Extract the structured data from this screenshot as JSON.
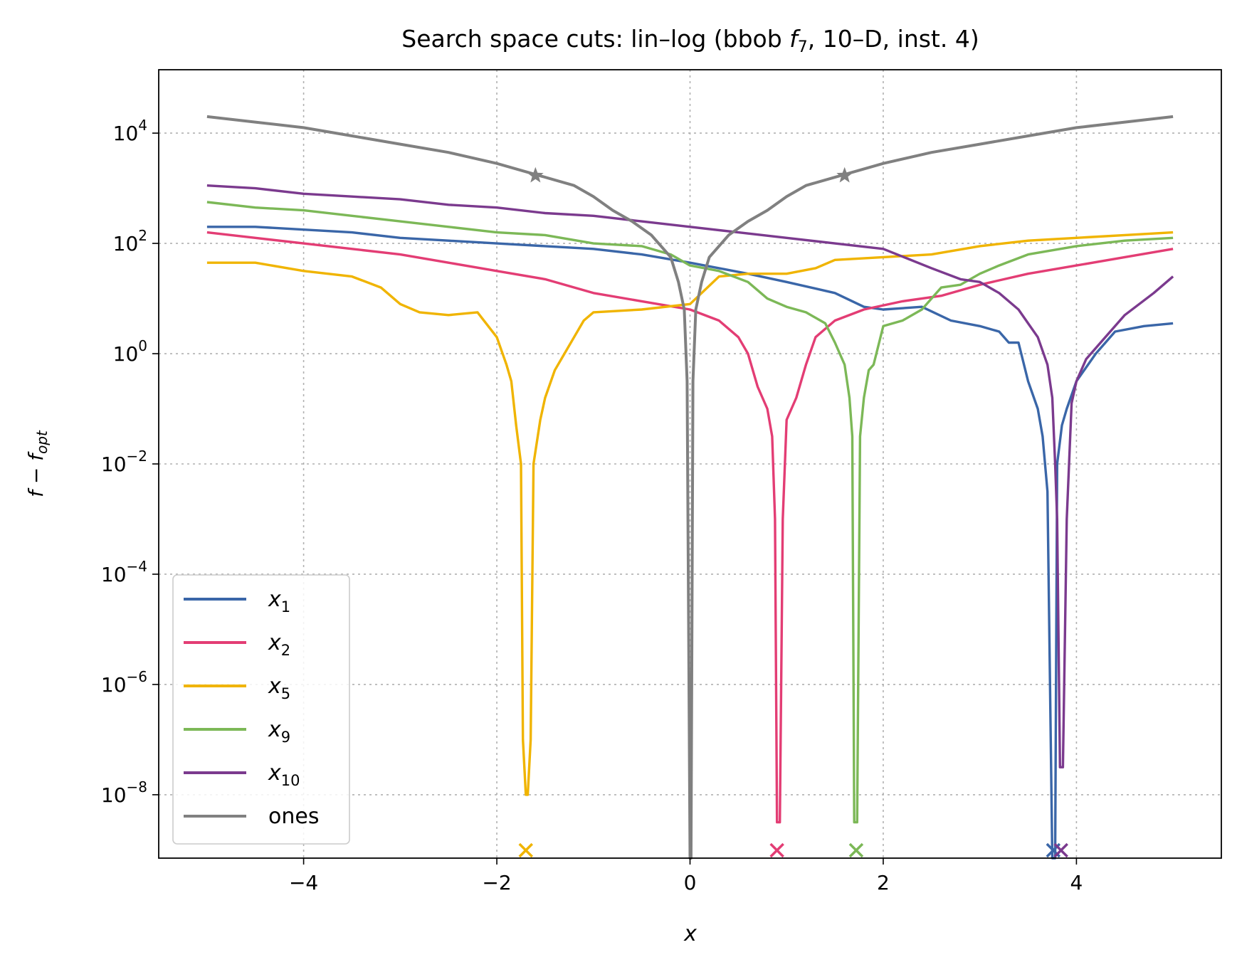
{
  "chart_data": {
    "type": "line",
    "title": "Search space cuts: lin–log (bbob f7, 10–D, inst. 4)",
    "title_parts": {
      "before": "Search space cuts: lin–log (bbob ",
      "func": "f",
      "func_sub": "7",
      "after": ", 10–D, inst. 4)"
    },
    "xlabel": "x",
    "ylabel": "f − f_opt",
    "ylabel_parts": {
      "main": "f",
      "minus": " − ",
      "f2": "f",
      "sub": "opt"
    },
    "xlim": [
      -5.5,
      5.5
    ],
    "ylim_log10": [
      -9.15,
      5.15
    ],
    "yscale": "log",
    "grid": true,
    "legend_position": "lower-left",
    "x_ticks": [
      {
        "value": -4,
        "label": "−4"
      },
      {
        "value": -2,
        "label": "−2"
      },
      {
        "value": 0,
        "label": "0"
      },
      {
        "value": 2,
        "label": "2"
      },
      {
        "value": 4,
        "label": "4"
      }
    ],
    "y_ticks": [
      {
        "exp": 4,
        "base": "10",
        "sup": "4"
      },
      {
        "exp": 2,
        "base": "10",
        "sup": "2"
      },
      {
        "exp": 0,
        "base": "10",
        "sup": "0"
      },
      {
        "exp": -2,
        "base": "10",
        "sup": "−2"
      },
      {
        "exp": -4,
        "base": "10",
        "sup": "−4"
      },
      {
        "exp": -6,
        "base": "10",
        "sup": "−6"
      },
      {
        "exp": -8,
        "base": "10",
        "sup": "−8"
      }
    ],
    "series": [
      {
        "name": "x1",
        "label_main": "x",
        "label_sub": "1",
        "color": "#3a66a8",
        "points": [
          [
            -5.0,
            2.3
          ],
          [
            -4.5,
            2.3
          ],
          [
            -4.0,
            2.25
          ],
          [
            -3.5,
            2.2
          ],
          [
            -3.0,
            2.1
          ],
          [
            -2.5,
            2.05
          ],
          [
            -2.0,
            2.0
          ],
          [
            -1.5,
            1.95
          ],
          [
            -1.0,
            1.9
          ],
          [
            -0.5,
            1.8
          ],
          [
            0.0,
            1.65
          ],
          [
            0.3,
            1.55
          ],
          [
            0.6,
            1.45
          ],
          [
            1.0,
            1.3
          ],
          [
            1.5,
            1.1
          ],
          [
            1.8,
            0.85
          ],
          [
            2.0,
            0.8
          ],
          [
            2.4,
            0.85
          ],
          [
            2.7,
            0.6
          ],
          [
            3.0,
            0.5
          ],
          [
            3.2,
            0.4
          ],
          [
            3.3,
            0.2
          ],
          [
            3.4,
            0.2
          ],
          [
            3.5,
            -0.5
          ],
          [
            3.6,
            -1.0
          ],
          [
            3.65,
            -1.5
          ],
          [
            3.7,
            -2.5
          ],
          [
            3.75,
            -9.2
          ],
          [
            3.78,
            -9.2
          ],
          [
            3.8,
            -2.0
          ],
          [
            3.85,
            -1.3
          ],
          [
            3.9,
            -1.0
          ],
          [
            4.0,
            -0.5
          ],
          [
            4.2,
            0.0
          ],
          [
            4.4,
            0.4
          ],
          [
            4.7,
            0.5
          ],
          [
            5.0,
            0.55
          ]
        ]
      },
      {
        "name": "x2",
        "label_main": "x",
        "label_sub": "2",
        "color": "#e33d74",
        "points": [
          [
            -5.0,
            2.2
          ],
          [
            -4.5,
            2.1
          ],
          [
            -4.0,
            2.0
          ],
          [
            -3.5,
            1.9
          ],
          [
            -3.0,
            1.8
          ],
          [
            -2.5,
            1.65
          ],
          [
            -2.0,
            1.5
          ],
          [
            -1.5,
            1.35
          ],
          [
            -1.0,
            1.1
          ],
          [
            -0.5,
            0.95
          ],
          [
            0.0,
            0.8
          ],
          [
            0.3,
            0.6
          ],
          [
            0.5,
            0.3
          ],
          [
            0.6,
            0.0
          ],
          [
            0.7,
            -0.6
          ],
          [
            0.8,
            -1.0
          ],
          [
            0.85,
            -1.5
          ],
          [
            0.88,
            -3.0
          ],
          [
            0.9,
            -8.5
          ],
          [
            0.93,
            -8.5
          ],
          [
            0.96,
            -3.0
          ],
          [
            1.0,
            -1.2
          ],
          [
            1.1,
            -0.8
          ],
          [
            1.2,
            -0.2
          ],
          [
            1.3,
            0.3
          ],
          [
            1.5,
            0.6
          ],
          [
            1.8,
            0.8
          ],
          [
            2.2,
            0.95
          ],
          [
            2.6,
            1.05
          ],
          [
            3.0,
            1.25
          ],
          [
            3.5,
            1.45
          ],
          [
            4.0,
            1.6
          ],
          [
            4.5,
            1.75
          ],
          [
            5.0,
            1.9
          ]
        ]
      },
      {
        "name": "x5",
        "label_main": "x",
        "label_sub": "5",
        "color": "#f0b400",
        "points": [
          [
            -5.0,
            1.65
          ],
          [
            -4.5,
            1.65
          ],
          [
            -4.0,
            1.5
          ],
          [
            -3.5,
            1.4
          ],
          [
            -3.2,
            1.2
          ],
          [
            -3.0,
            0.9
          ],
          [
            -2.8,
            0.75
          ],
          [
            -2.5,
            0.7
          ],
          [
            -2.2,
            0.75
          ],
          [
            -2.0,
            0.3
          ],
          [
            -1.9,
            -0.2
          ],
          [
            -1.85,
            -0.5
          ],
          [
            -1.8,
            -1.3
          ],
          [
            -1.75,
            -2.0
          ],
          [
            -1.73,
            -7.0
          ],
          [
            -1.7,
            -8.0
          ],
          [
            -1.68,
            -8.0
          ],
          [
            -1.65,
            -7.0
          ],
          [
            -1.62,
            -2.0
          ],
          [
            -1.55,
            -1.2
          ],
          [
            -1.5,
            -0.8
          ],
          [
            -1.4,
            -0.3
          ],
          [
            -1.3,
            0.0
          ],
          [
            -1.2,
            0.3
          ],
          [
            -1.1,
            0.6
          ],
          [
            -1.0,
            0.75
          ],
          [
            -0.5,
            0.8
          ],
          [
            0.0,
            0.9
          ],
          [
            0.3,
            1.4
          ],
          [
            0.6,
            1.45
          ],
          [
            1.0,
            1.45
          ],
          [
            1.3,
            1.55
          ],
          [
            1.5,
            1.7
          ],
          [
            2.0,
            1.75
          ],
          [
            2.5,
            1.8
          ],
          [
            3.0,
            1.95
          ],
          [
            3.5,
            2.05
          ],
          [
            4.0,
            2.1
          ],
          [
            4.5,
            2.15
          ],
          [
            5.0,
            2.2
          ]
        ]
      },
      {
        "name": "x9",
        "label_main": "x",
        "label_sub": "9",
        "color": "#7cb857",
        "points": [
          [
            -5.0,
            2.75
          ],
          [
            -4.5,
            2.65
          ],
          [
            -4.0,
            2.6
          ],
          [
            -3.5,
            2.5
          ],
          [
            -3.0,
            2.4
          ],
          [
            -2.5,
            2.3
          ],
          [
            -2.0,
            2.2
          ],
          [
            -1.5,
            2.15
          ],
          [
            -1.0,
            2.0
          ],
          [
            -0.5,
            1.95
          ],
          [
            -0.2,
            1.8
          ],
          [
            0.0,
            1.6
          ],
          [
            0.3,
            1.5
          ],
          [
            0.6,
            1.3
          ],
          [
            0.8,
            1.0
          ],
          [
            1.0,
            0.85
          ],
          [
            1.2,
            0.75
          ],
          [
            1.4,
            0.55
          ],
          [
            1.5,
            0.2
          ],
          [
            1.6,
            -0.2
          ],
          [
            1.65,
            -0.8
          ],
          [
            1.68,
            -1.5
          ],
          [
            1.7,
            -8.5
          ],
          [
            1.73,
            -8.5
          ],
          [
            1.76,
            -1.5
          ],
          [
            1.8,
            -0.8
          ],
          [
            1.85,
            -0.3
          ],
          [
            1.9,
            -0.2
          ],
          [
            2.0,
            0.5
          ],
          [
            2.2,
            0.6
          ],
          [
            2.4,
            0.8
          ],
          [
            2.6,
            1.2
          ],
          [
            2.8,
            1.25
          ],
          [
            3.0,
            1.45
          ],
          [
            3.2,
            1.6
          ],
          [
            3.5,
            1.8
          ],
          [
            4.0,
            1.95
          ],
          [
            4.5,
            2.05
          ],
          [
            5.0,
            2.1
          ]
        ]
      },
      {
        "name": "x10",
        "label_main": "x",
        "label_sub": "10",
        "color": "#7b3a8e",
        "points": [
          [
            -5.0,
            3.05
          ],
          [
            -4.5,
            3.0
          ],
          [
            -4.0,
            2.9
          ],
          [
            -3.5,
            2.85
          ],
          [
            -3.0,
            2.8
          ],
          [
            -2.5,
            2.7
          ],
          [
            -2.0,
            2.65
          ],
          [
            -1.5,
            2.55
          ],
          [
            -1.0,
            2.5
          ],
          [
            -0.5,
            2.4
          ],
          [
            0.0,
            2.3
          ],
          [
            0.5,
            2.2
          ],
          [
            1.0,
            2.1
          ],
          [
            1.5,
            2.0
          ],
          [
            2.0,
            1.9
          ],
          [
            2.5,
            1.55
          ],
          [
            2.8,
            1.35
          ],
          [
            3.0,
            1.3
          ],
          [
            3.2,
            1.1
          ],
          [
            3.4,
            0.8
          ],
          [
            3.5,
            0.55
          ],
          [
            3.6,
            0.3
          ],
          [
            3.7,
            -0.2
          ],
          [
            3.75,
            -0.8
          ],
          [
            3.78,
            -2.0
          ],
          [
            3.8,
            -3.0
          ],
          [
            3.83,
            -7.5
          ],
          [
            3.86,
            -7.5
          ],
          [
            3.9,
            -3.0
          ],
          [
            3.95,
            -0.9
          ],
          [
            4.0,
            -0.5
          ],
          [
            4.1,
            -0.1
          ],
          [
            4.3,
            0.3
          ],
          [
            4.5,
            0.7
          ],
          [
            4.8,
            1.1
          ],
          [
            5.0,
            1.4
          ]
        ]
      },
      {
        "name": "ones",
        "label_main": "ones",
        "label_sub": "",
        "color": "#808080",
        "points": [
          [
            -5.0,
            4.3
          ],
          [
            -4.5,
            4.2
          ],
          [
            -4.0,
            4.1
          ],
          [
            -3.5,
            3.95
          ],
          [
            -3.0,
            3.8
          ],
          [
            -2.5,
            3.65
          ],
          [
            -2.0,
            3.45
          ],
          [
            -1.6,
            3.25
          ],
          [
            -1.2,
            3.05
          ],
          [
            -1.0,
            2.85
          ],
          [
            -0.8,
            2.6
          ],
          [
            -0.6,
            2.4
          ],
          [
            -0.4,
            2.15
          ],
          [
            -0.3,
            1.95
          ],
          [
            -0.2,
            1.75
          ],
          [
            -0.12,
            1.3
          ],
          [
            -0.06,
            0.8
          ],
          [
            -0.03,
            -0.5
          ],
          [
            0.0,
            -9.2
          ],
          [
            0.01,
            -9.2
          ],
          [
            0.03,
            -0.5
          ],
          [
            0.06,
            0.8
          ],
          [
            0.12,
            1.3
          ],
          [
            0.2,
            1.75
          ],
          [
            0.3,
            1.95
          ],
          [
            0.4,
            2.15
          ],
          [
            0.6,
            2.4
          ],
          [
            0.8,
            2.6
          ],
          [
            1.0,
            2.85
          ],
          [
            1.2,
            3.05
          ],
          [
            1.6,
            3.25
          ],
          [
            2.0,
            3.45
          ],
          [
            2.5,
            3.65
          ],
          [
            3.0,
            3.8
          ],
          [
            3.5,
            3.95
          ],
          [
            4.0,
            4.1
          ],
          [
            4.5,
            4.2
          ],
          [
            5.0,
            4.3
          ]
        ]
      }
    ],
    "star_markers": [
      {
        "x": -1.6,
        "y_log10": 3.23,
        "color": "#808080"
      },
      {
        "x": 1.6,
        "y_log10": 3.23,
        "color": "#808080"
      }
    ],
    "optimum_markers": [
      {
        "x": -1.7,
        "color": "#f0b400"
      },
      {
        "x": 0.9,
        "color": "#e33d74"
      },
      {
        "x": 1.72,
        "color": "#7cb857"
      },
      {
        "x": 3.76,
        "color": "#3a66a8"
      },
      {
        "x": 3.84,
        "color": "#7b3a8e"
      }
    ]
  }
}
